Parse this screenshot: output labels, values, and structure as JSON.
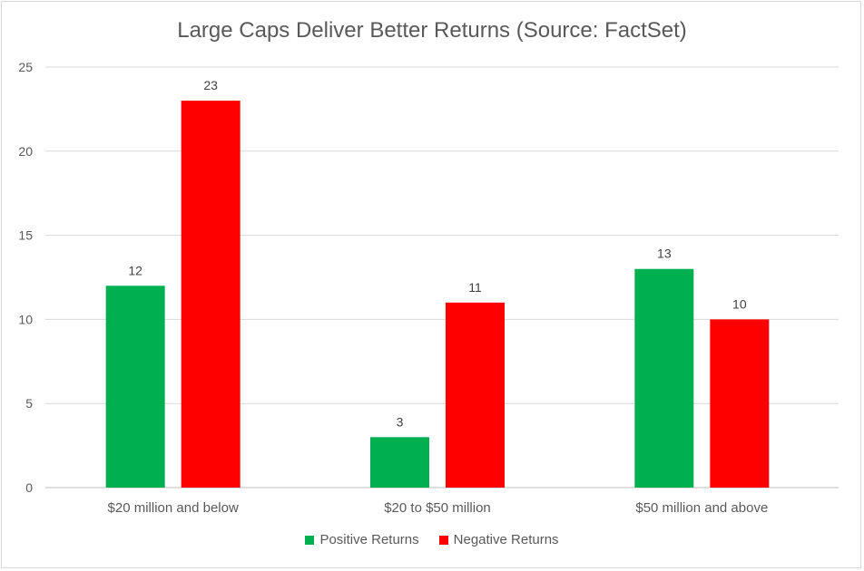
{
  "chart_data": {
    "type": "bar",
    "title": "Large Caps Deliver Better Returns (Source: FactSet)",
    "categories": [
      "$20 million and below",
      "$20 to $50 million",
      "$50 million and above"
    ],
    "series": [
      {
        "name": "Positive Returns",
        "values": [
          12,
          3,
          13
        ],
        "color": "#00b050"
      },
      {
        "name": "Negative Returns",
        "values": [
          23,
          11,
          10
        ],
        "color": "#ff0000"
      }
    ],
    "ylim": [
      0,
      25
    ],
    "yticks": [
      0,
      5,
      10,
      15,
      20,
      25
    ],
    "grid": true,
    "legend": "bottom"
  }
}
